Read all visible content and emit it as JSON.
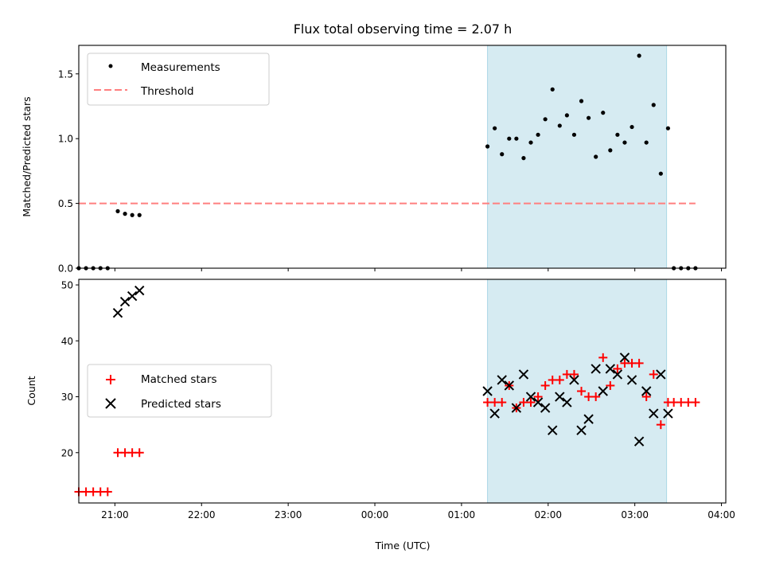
{
  "chart_data": [
    {
      "type": "scatter",
      "title": "Flux total observing time = 2.07 h",
      "ylabel": "Matched/Predicted stars",
      "xlabel": "",
      "ylim": [
        0,
        1.72
      ],
      "xlim": [
        "20:35",
        "04:03"
      ],
      "yticks": [
        0.0,
        0.5,
        1.0,
        1.5
      ],
      "ytick_labels": [
        "0.0",
        "0.5",
        "1.0",
        "1.5"
      ],
      "xtick_labels": [
        "21:00",
        "22:00",
        "23:00",
        "00:00",
        "01:00",
        "02:00",
        "03:00",
        "04:00"
      ],
      "x_tick_labels_visible": false,
      "grid": false,
      "legend": {
        "location": "upper-left",
        "entries": [
          {
            "label": "Measurements",
            "marker": "dot",
            "color": "#000000"
          },
          {
            "label": "Threshold",
            "marker": "dashed-line",
            "color": "#ff7f7f"
          }
        ]
      },
      "shaded_interval": {
        "from": "01:18",
        "to": "03:22",
        "color": "#add8e6"
      },
      "threshold": {
        "y": 0.5,
        "from": "20:35",
        "to": "03:42",
        "color": "#ff7f7f"
      },
      "series": [
        {
          "name": "Measurements",
          "color": "#000000",
          "points": [
            [
              "20:35",
              0.0
            ],
            [
              "20:40",
              0.0
            ],
            [
              "20:45",
              0.0
            ],
            [
              "20:50",
              0.0
            ],
            [
              "20:55",
              0.0
            ],
            [
              "21:02",
              0.44
            ],
            [
              "21:07",
              0.42
            ],
            [
              "21:12",
              0.41
            ],
            [
              "21:17",
              0.41
            ],
            [
              "01:18",
              0.94
            ],
            [
              "01:23",
              1.08
            ],
            [
              "01:28",
              0.88
            ],
            [
              "01:33",
              1.0
            ],
            [
              "01:38",
              1.0
            ],
            [
              "01:43",
              0.85
            ],
            [
              "01:48",
              0.97
            ],
            [
              "01:53",
              1.03
            ],
            [
              "01:58",
              1.15
            ],
            [
              "02:03",
              1.38
            ],
            [
              "02:08",
              1.1
            ],
            [
              "02:13",
              1.18
            ],
            [
              "02:18",
              1.03
            ],
            [
              "02:23",
              1.29
            ],
            [
              "02:28",
              1.16
            ],
            [
              "02:33",
              0.86
            ],
            [
              "02:38",
              1.2
            ],
            [
              "02:43",
              0.91
            ],
            [
              "02:48",
              1.03
            ],
            [
              "02:53",
              0.97
            ],
            [
              "02:58",
              1.09
            ],
            [
              "03:03",
              1.64
            ],
            [
              "03:08",
              0.97
            ],
            [
              "03:13",
              1.26
            ],
            [
              "03:18",
              0.73
            ],
            [
              "03:23",
              1.08
            ],
            [
              "03:27",
              0.0
            ],
            [
              "03:32",
              0.0
            ],
            [
              "03:37",
              0.0
            ],
            [
              "03:42",
              0.0
            ]
          ]
        }
      ]
    },
    {
      "type": "scatter",
      "title": "",
      "ylabel": "Count",
      "xlabel": "Time (UTC)",
      "ylim": [
        11,
        51
      ],
      "xlim": [
        "20:35",
        "04:03"
      ],
      "yticks": [
        20,
        30,
        40,
        50
      ],
      "ytick_labels": [
        "20",
        "30",
        "40",
        "50"
      ],
      "xtick_labels": [
        "21:00",
        "22:00",
        "23:00",
        "00:00",
        "01:00",
        "02:00",
        "03:00",
        "04:00"
      ],
      "grid": false,
      "legend": {
        "location": "center-left",
        "entries": [
          {
            "label": "Matched stars",
            "marker": "plus",
            "color": "#ff0000"
          },
          {
            "label": "Predicted stars",
            "marker": "x",
            "color": "#000000"
          }
        ]
      },
      "shaded_interval": {
        "from": "01:18",
        "to": "03:22",
        "color": "#add8e6"
      },
      "series": [
        {
          "name": "Matched stars",
          "marker": "plus",
          "color": "#ff0000",
          "points": [
            [
              "20:35",
              13
            ],
            [
              "20:40",
              13
            ],
            [
              "20:45",
              13
            ],
            [
              "20:50",
              13
            ],
            [
              "20:55",
              13
            ],
            [
              "21:02",
              20
            ],
            [
              "21:07",
              20
            ],
            [
              "21:12",
              20
            ],
            [
              "21:17",
              20
            ],
            [
              "01:18",
              29
            ],
            [
              "01:23",
              29
            ],
            [
              "01:28",
              29
            ],
            [
              "01:33",
              32
            ],
            [
              "01:38",
              28
            ],
            [
              "01:43",
              29
            ],
            [
              "01:48",
              29
            ],
            [
              "01:53",
              30
            ],
            [
              "01:58",
              32
            ],
            [
              "02:03",
              33
            ],
            [
              "02:08",
              33
            ],
            [
              "02:13",
              34
            ],
            [
              "02:18",
              34
            ],
            [
              "02:23",
              31
            ],
            [
              "02:28",
              30
            ],
            [
              "02:33",
              30
            ],
            [
              "02:38",
              37
            ],
            [
              "02:43",
              32
            ],
            [
              "02:48",
              35
            ],
            [
              "02:53",
              36
            ],
            [
              "02:58",
              36
            ],
            [
              "03:03",
              36
            ],
            [
              "03:08",
              30
            ],
            [
              "03:13",
              34
            ],
            [
              "03:18",
              25
            ],
            [
              "03:23",
              29
            ],
            [
              "03:27",
              29
            ],
            [
              "03:32",
              29
            ],
            [
              "03:37",
              29
            ],
            [
              "03:42",
              29
            ]
          ]
        },
        {
          "name": "Predicted stars",
          "marker": "x",
          "color": "#000000",
          "points": [
            [
              "21:02",
              45
            ],
            [
              "21:07",
              47
            ],
            [
              "21:12",
              48
            ],
            [
              "21:17",
              49
            ],
            [
              "01:18",
              31
            ],
            [
              "01:23",
              27
            ],
            [
              "01:28",
              33
            ],
            [
              "01:33",
              32
            ],
            [
              "01:38",
              28
            ],
            [
              "01:43",
              34
            ],
            [
              "01:48",
              30
            ],
            [
              "01:53",
              29
            ],
            [
              "01:58",
              28
            ],
            [
              "02:03",
              24
            ],
            [
              "02:08",
              30
            ],
            [
              "02:13",
              29
            ],
            [
              "02:18",
              33
            ],
            [
              "02:23",
              24
            ],
            [
              "02:28",
              26
            ],
            [
              "02:33",
              35
            ],
            [
              "02:38",
              31
            ],
            [
              "02:43",
              35
            ],
            [
              "02:48",
              34
            ],
            [
              "02:53",
              37
            ],
            [
              "02:58",
              33
            ],
            [
              "03:03",
              22
            ],
            [
              "03:08",
              31
            ],
            [
              "03:13",
              27
            ],
            [
              "03:18",
              34
            ],
            [
              "03:23",
              27
            ]
          ]
        }
      ]
    }
  ]
}
